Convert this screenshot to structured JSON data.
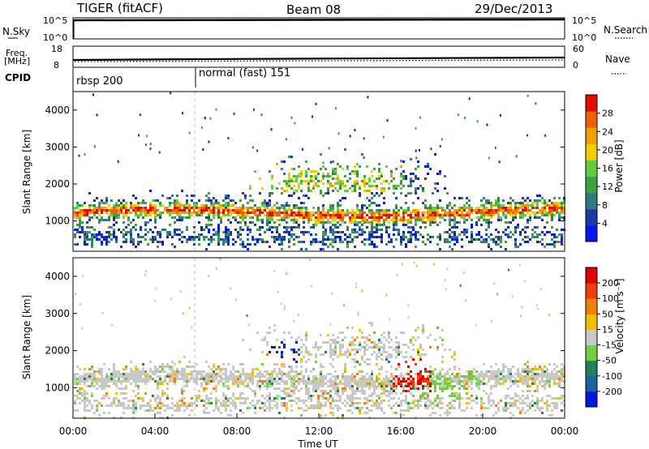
{
  "header": {
    "station": "TIGER (fitACF)",
    "beam": "Beam 08",
    "date": "29/Dec/2013"
  },
  "sky_panel": {
    "left_label": "N.Sky",
    "left_ticks": [
      "10^5",
      "10^0"
    ],
    "right_ticks": [
      "10^5",
      "10^0"
    ],
    "right_label": "N.Search"
  },
  "freq_panel": {
    "left_label_line1": "Freq.",
    "left_label_line2": "[MHz]",
    "left_ticks": [
      "18",
      "8"
    ],
    "right_ticks": [
      "60",
      "0"
    ],
    "right_label": "Nave"
  },
  "cpid_panel": {
    "label": "CPID",
    "segments": [
      {
        "name": "rbsp 200",
        "start_hour": 0
      },
      {
        "name": "normal (fast) 151",
        "start_hour": 6
      }
    ]
  },
  "chart_data": [
    {
      "type": "heatmap",
      "quantity": "power",
      "ylabel": "Slant Range [km]",
      "yticks": [
        "4000",
        "3000",
        "2000",
        "1000"
      ],
      "ylim": [
        180,
        4500
      ],
      "xlim_hours": [
        0,
        24
      ],
      "colorbar": {
        "label": "Power [dB]",
        "ticks": [
          "28",
          "24",
          "20",
          "16",
          "12",
          "8",
          "4"
        ],
        "colors": [
          "#0018f0",
          "#1a3aa8",
          "#2f7a7a",
          "#3fa040",
          "#60d040",
          "#f0d000",
          "#f0a000",
          "#f06000",
          "#e01000"
        ]
      },
      "bands": [
        {
          "hour_start": 0,
          "hour_end": 24,
          "range_center": 1200,
          "range_width": 450,
          "level": "high"
        },
        {
          "hour_start": 7,
          "hour_end": 16,
          "range_center": 2100,
          "range_width": 600,
          "level": "mid"
        },
        {
          "hour_start": 0,
          "hour_end": 24,
          "range_center": 500,
          "range_width": 450,
          "level": "low"
        }
      ]
    },
    {
      "type": "heatmap",
      "quantity": "velocity",
      "xlabel": "Time UT",
      "ylabel": "Slant Range [km]",
      "yticks": [
        "4000",
        "3000",
        "2000",
        "1000"
      ],
      "ylim": [
        180,
        4500
      ],
      "xlim_hours": [
        0,
        24
      ],
      "xticks": [
        "00:00",
        "04:00",
        "08:00",
        "12:00",
        "16:00",
        "20:00",
        "00:00"
      ],
      "colorbar": {
        "label": "Velocity [m s⁻¹]",
        "ticks": [
          "200",
          "100",
          "50",
          "15",
          "-15",
          "-50",
          "-100",
          "-200"
        ],
        "colors": [
          "#0018e0",
          "#2060a0",
          "#208060",
          "#70d040",
          "#c8c8c8",
          "#f0c000",
          "#f08000",
          "#f04000",
          "#e00000"
        ]
      }
    }
  ]
}
